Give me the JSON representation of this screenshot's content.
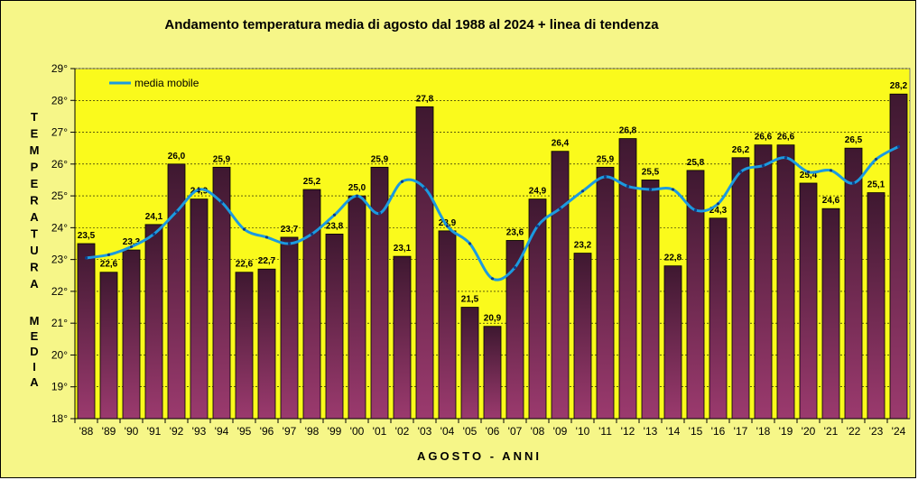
{
  "chart_data": {
    "type": "bar",
    "title": "Andamento temperatura media di agosto dal 1988 al 2024 + linea di tendenza",
    "xlabel": "AGOSTO - ANNI",
    "ylabel_top": "TEMPERATURA",
    "ylabel_bottom": "MEDIA",
    "ylim": [
      18,
      29
    ],
    "y_ticks": [
      "18°",
      "19°",
      "20°",
      "21°",
      "22°",
      "23°",
      "24°",
      "25°",
      "26°",
      "27°",
      "28°",
      "29°"
    ],
    "grid": true,
    "legend_position": "top-left",
    "categories": [
      "'88",
      "'89",
      "'90",
      "'91",
      "'92",
      "'93",
      "'94",
      "'95",
      "'96",
      "'97",
      "'98",
      "'99",
      "'00",
      "'01",
      "'02",
      "'03",
      "'04",
      "'05",
      "'06",
      "'07",
      "'08",
      "'09",
      "'10",
      "'11",
      "'12",
      "'13",
      "'14",
      "'15",
      "'16",
      "'17",
      "'18",
      "'19",
      "'20",
      "'21",
      "'22",
      "'23",
      "'24"
    ],
    "values": [
      23.5,
      22.6,
      23.3,
      24.1,
      26.0,
      24.9,
      25.9,
      22.6,
      22.7,
      23.7,
      25.2,
      23.8,
      25.0,
      25.9,
      23.1,
      27.8,
      23.9,
      21.5,
      20.9,
      23.6,
      24.9,
      26.4,
      23.2,
      25.9,
      26.8,
      25.5,
      22.8,
      25.8,
      24.3,
      26.2,
      26.6,
      26.6,
      25.4,
      24.6,
      26.5,
      25.1,
      28.2
    ],
    "value_labels": [
      "23,5",
      "22,6",
      "23,3",
      "24,1",
      "26,0",
      "24,9",
      "25,9",
      "22,6",
      "22,7",
      "23,7",
      "25,2",
      "23,8",
      "25,0",
      "25,9",
      "23,1",
      "27,8",
      "23,9",
      "21,5",
      "20,9",
      "23,6",
      "24,9",
      "26,4",
      "23,2",
      "25,9",
      "26,8",
      "25,5",
      "22,8",
      "25,8",
      "24,3",
      "26,2",
      "26,6",
      "26,6",
      "25,4",
      "24,6",
      "26,5",
      "25,1",
      "28,2"
    ],
    "moving_average": {
      "name": "media mobile",
      "values": [
        23.05,
        23.15,
        23.4,
        23.8,
        24.5,
        25.2,
        24.8,
        23.95,
        23.7,
        23.5,
        23.8,
        24.4,
        25.0,
        24.45,
        25.45,
        25.25,
        24.05,
        23.5,
        22.4,
        22.75,
        24.05,
        24.6,
        25.15,
        25.6,
        25.3,
        25.2,
        25.2,
        24.55,
        24.75,
        25.75,
        25.95,
        26.2,
        25.75,
        25.8,
        25.4,
        26.15,
        26.55
      ],
      "color": "#1B9AE0"
    },
    "colors": {
      "plot_background": "#FAFA1C",
      "chart_background": "#F6F688",
      "bar_top": "#3E1830",
      "bar_bottom": "#9B3A6E",
      "line": "#1B9AE0",
      "line_markers": "#0D3E8C"
    }
  }
}
